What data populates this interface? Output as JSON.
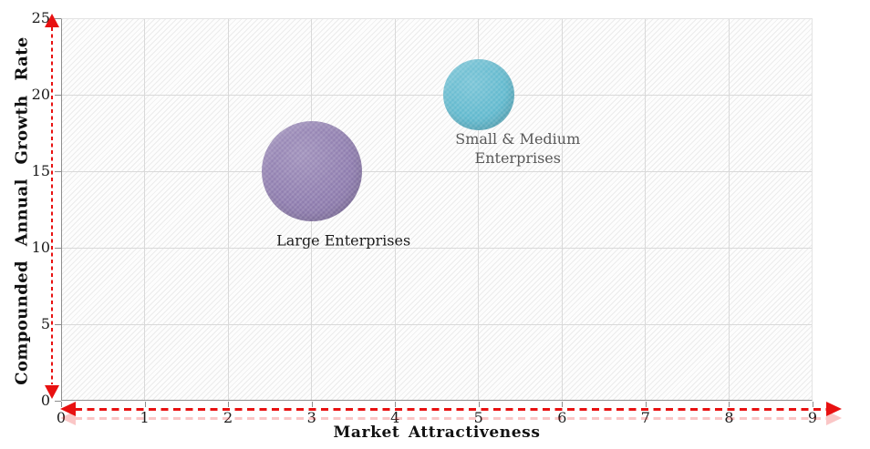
{
  "chart_data": {
    "type": "bubble",
    "title": "",
    "xlabel": "Market Attractiveness",
    "ylabel": "Compounded Annual Growth Rate",
    "xlim": [
      0,
      9
    ],
    "ylim": [
      0,
      25
    ],
    "x_ticks": [
      0,
      1,
      2,
      3,
      4,
      5,
      6,
      7,
      8,
      9
    ],
    "y_ticks": [
      0,
      5,
      10,
      15,
      20,
      25
    ],
    "grid": true,
    "legend": "none",
    "axis_arrow_color": "#e81111",
    "gridline_color": "#d9d9d9",
    "series": [
      {
        "name": "Large Enterprises",
        "x": 3,
        "y": 15,
        "bubble_radius_px": 55,
        "color": "#8e7cae",
        "label_color": "#1c1c1c",
        "label_dx": 35,
        "label_dy": 76,
        "label_width": 220
      },
      {
        "name": "Small & Medium Enterprises",
        "x": 5,
        "y": 20,
        "bubble_radius_px": 39,
        "color": "#61b9ce",
        "label_color": "#595959",
        "label_dx": 43,
        "label_dy": 59,
        "label_width": 150
      }
    ]
  }
}
